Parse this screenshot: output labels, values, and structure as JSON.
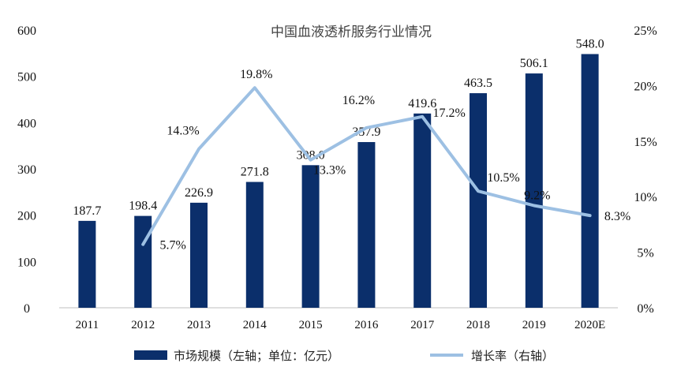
{
  "chart_data": {
    "type": "bar",
    "title": "中国血液透析服务行业情况",
    "categories": [
      "2011",
      "2012",
      "2013",
      "2014",
      "2015",
      "2016",
      "2017",
      "2018",
      "2019",
      "2020E"
    ],
    "series": [
      {
        "name": "市场规模（左轴；单位：亿元）",
        "kind": "bar",
        "axis": "left",
        "values": [
          187.7,
          198.4,
          226.9,
          271.8,
          308.0,
          357.9,
          419.6,
          463.5,
          506.1,
          548.0
        ],
        "labels": [
          "187.7",
          "198.4",
          "226.9",
          "271.8",
          "308.0",
          "357.9",
          "419.6",
          "463.5",
          "506.1",
          "548.0"
        ]
      },
      {
        "name": "增长率（右轴）",
        "kind": "line",
        "axis": "right",
        "values": [
          null,
          5.7,
          14.3,
          19.8,
          13.3,
          16.2,
          17.2,
          10.5,
          9.2,
          8.3
        ],
        "labels": [
          null,
          "5.7%",
          "14.3%",
          "19.8%",
          "13.3%",
          "16.2%",
          "17.2%",
          "10.5%",
          "9.2%",
          "8.3%"
        ]
      }
    ],
    "y_left": {
      "min": 0,
      "max": 600,
      "ticks": [
        "0",
        "100",
        "200",
        "300",
        "400",
        "500",
        "600"
      ]
    },
    "y_right": {
      "min": 0,
      "max": 25,
      "ticks": [
        "0%",
        "5%",
        "10%",
        "15%",
        "20%",
        "25%"
      ]
    },
    "legend": "bottom",
    "grid": false,
    "colors": {
      "bar": "#0b2f6b",
      "line": "#9dc0e3",
      "axis": "#bfbfbf",
      "text": "#111111",
      "title": "#444444"
    }
  }
}
